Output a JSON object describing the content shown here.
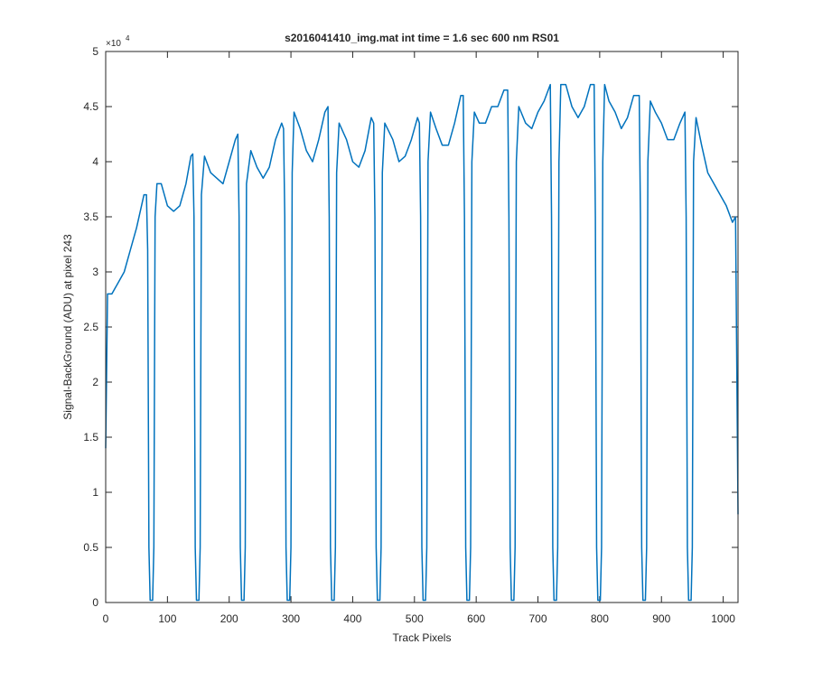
{
  "chart_data": {
    "type": "line",
    "title": "s2016041410_img.mat int time = 1.6 sec  600 nm RS01",
    "x_label": "Track Pixels",
    "y_label": "Signal-BackGround (ADU) at pixel 243",
    "y_multiplier": "×10",
    "y_multiplier_exponent": "4",
    "xlim": [
      0,
      1024
    ],
    "ylim": [
      0,
      5
    ],
    "xticks": [
      0,
      100,
      200,
      300,
      400,
      500,
      600,
      700,
      800,
      900,
      1000
    ],
    "yticks": [
      0,
      0.5,
      1,
      1.5,
      2,
      2.5,
      3,
      3.5,
      4,
      4.5,
      5
    ],
    "series": [
      {
        "color": "#0072bd",
        "x": [
          0,
          3,
          10,
          20,
          30,
          40,
          50,
          58,
          62,
          66,
          68,
          70,
          72,
          76,
          78,
          80,
          83,
          90,
          100,
          110,
          120,
          130,
          138,
          141,
          143,
          145,
          147,
          151,
          153,
          155,
          160,
          170,
          180,
          190,
          200,
          210,
          214,
          216,
          218,
          220,
          224,
          226,
          228,
          235,
          245,
          255,
          265,
          275,
          285,
          288,
          290,
          292,
          294,
          298,
          300,
          302,
          305,
          315,
          325,
          335,
          345,
          355,
          360,
          362,
          364,
          366,
          370,
          372,
          374,
          378,
          390,
          400,
          410,
          420,
          430,
          434,
          436,
          438,
          440,
          444,
          446,
          448,
          452,
          465,
          475,
          485,
          495,
          505,
          508,
          510,
          512,
          514,
          518,
          520,
          522,
          526,
          535,
          545,
          555,
          565,
          575,
          579,
          581,
          583,
          585,
          589,
          591,
          593,
          597,
          605,
          615,
          625,
          635,
          645,
          651,
          653,
          655,
          657,
          661,
          663,
          665,
          669,
          680,
          690,
          700,
          710,
          720,
          722,
          724,
          726,
          730,
          732,
          734,
          737,
          745,
          755,
          765,
          775,
          785,
          791,
          793,
          795,
          797,
          801,
          803,
          805,
          808,
          815,
          825,
          835,
          845,
          855,
          864,
          866,
          868,
          870,
          874,
          876,
          878,
          882,
          890,
          900,
          910,
          920,
          930,
          938,
          940,
          942,
          944,
          948,
          950,
          952,
          956,
          965,
          975,
          985,
          995,
          1005,
          1015,
          1020,
          1024
        ],
        "values": [
          1.4,
          2.8,
          2.8,
          2.9,
          3.0,
          3.2,
          3.4,
          3.6,
          3.7,
          3.7,
          3.2,
          0.5,
          0.02,
          0.02,
          0.5,
          3.5,
          3.8,
          3.8,
          3.6,
          3.55,
          3.6,
          3.8,
          4.05,
          4.07,
          3.5,
          0.5,
          0.02,
          0.02,
          0.5,
          3.7,
          4.05,
          3.9,
          3.85,
          3.8,
          4.0,
          4.2,
          4.25,
          3.5,
          0.5,
          0.02,
          0.02,
          0.5,
          3.8,
          4.1,
          3.95,
          3.85,
          3.95,
          4.2,
          4.35,
          4.3,
          3.5,
          0.5,
          0.02,
          0.02,
          0.5,
          3.9,
          4.45,
          4.3,
          4.1,
          4.0,
          4.2,
          4.45,
          4.5,
          3.5,
          0.5,
          0.02,
          0.02,
          0.5,
          3.9,
          4.35,
          4.2,
          4.0,
          3.95,
          4.1,
          4.4,
          4.35,
          3.5,
          0.5,
          0.02,
          0.02,
          0.5,
          3.9,
          4.35,
          4.2,
          4.0,
          4.05,
          4.2,
          4.4,
          4.35,
          3.5,
          0.5,
          0.02,
          0.02,
          0.5,
          4.0,
          4.45,
          4.3,
          4.15,
          4.15,
          4.35,
          4.6,
          4.6,
          3.5,
          0.5,
          0.02,
          0.02,
          0.5,
          4.0,
          4.45,
          4.35,
          4.35,
          4.5,
          4.5,
          4.65,
          4.65,
          3.5,
          0.5,
          0.02,
          0.02,
          0.5,
          4.0,
          4.5,
          4.35,
          4.3,
          4.45,
          4.55,
          4.7,
          3.5,
          0.5,
          0.02,
          0.02,
          0.5,
          4.0,
          4.7,
          4.7,
          4.5,
          4.4,
          4.5,
          4.7,
          4.7,
          3.5,
          0.5,
          0.02,
          0.02,
          0.5,
          4.0,
          4.7,
          4.55,
          4.45,
          4.3,
          4.4,
          4.6,
          4.6,
          3.5,
          0.5,
          0.02,
          0.02,
          0.5,
          4.0,
          4.55,
          4.45,
          4.35,
          4.2,
          4.2,
          4.35,
          4.45,
          3.5,
          0.5,
          0.02,
          0.02,
          0.5,
          4.0,
          4.4,
          4.15,
          3.9,
          3.8,
          3.7,
          3.6,
          3.45,
          3.5,
          0.8
        ]
      }
    ]
  }
}
